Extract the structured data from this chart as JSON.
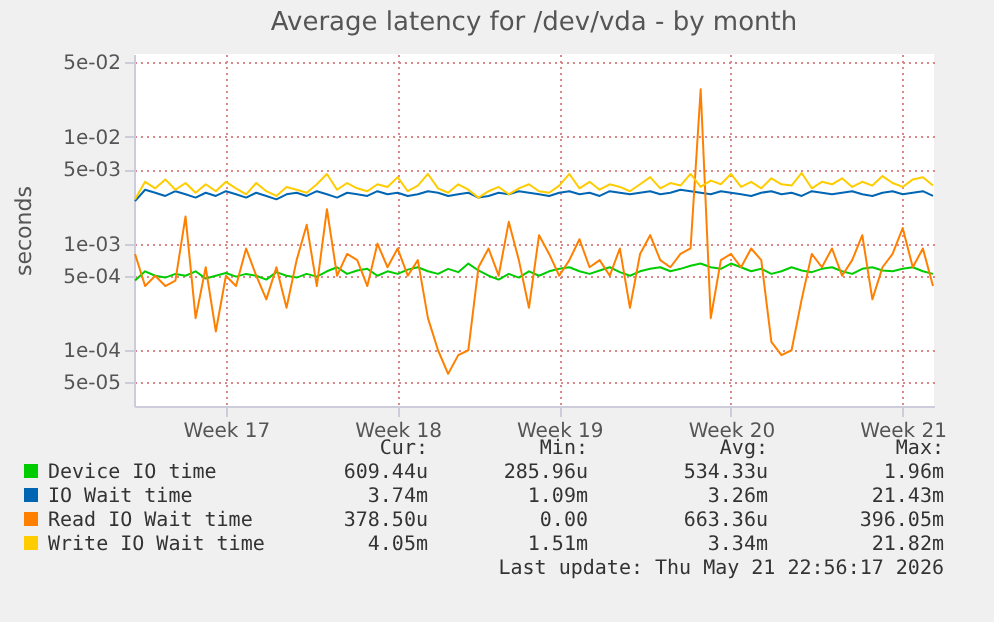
{
  "chart_data": {
    "type": "line",
    "title": "Average latency for /dev/vda - by month",
    "ylabel": "seconds",
    "log": "y",
    "grid": true,
    "legend": "bottom",
    "ylim": [
      3e-05,
      0.06
    ],
    "yticks": [
      {
        "value": 5e-05,
        "label": "5e-05"
      },
      {
        "value": 0.0001,
        "label": "1e-04"
      },
      {
        "value": 0.0005,
        "label": "5e-04"
      },
      {
        "value": 0.001,
        "label": "1e-03"
      },
      {
        "value": 0.005,
        "label": "5e-03"
      },
      {
        "value": 0.01,
        "label": "1e-02"
      },
      {
        "value": 0.05,
        "label": "5e-02"
      }
    ],
    "categories": [
      null,
      null,
      null,
      null,
      null,
      null,
      null,
      null,
      null,
      "Week 17",
      null,
      null,
      null,
      null,
      null,
      null,
      null,
      null,
      null,
      null,
      null,
      null,
      null,
      null,
      null,
      null,
      "Week 18",
      null,
      null,
      null,
      null,
      null,
      null,
      null,
      null,
      null,
      null,
      null,
      null,
      null,
      null,
      null,
      "Week 19",
      null,
      null,
      null,
      null,
      null,
      null,
      null,
      null,
      null,
      null,
      null,
      null,
      null,
      null,
      null,
      null,
      "Week 20",
      null,
      null,
      null,
      null,
      null,
      null,
      null,
      null,
      null,
      null,
      null,
      null,
      null,
      null,
      null,
      null,
      "Week 21",
      null,
      null,
      null
    ],
    "series": [
      {
        "name": "Device IO time",
        "color": "#00cc00",
        "values": [
          0.00045,
          0.00055,
          0.0005,
          0.00048,
          0.00052,
          0.0005,
          0.00055,
          0.00047,
          0.0005,
          0.00053,
          0.00049,
          0.00052,
          0.0005,
          0.00046,
          0.00054,
          0.0005,
          0.00048,
          0.00052,
          0.00049,
          0.00055,
          0.0006,
          0.00052,
          0.00056,
          0.00058,
          0.0005,
          0.00055,
          0.00052,
          0.00057,
          0.0006,
          0.00055,
          0.00052,
          0.00058,
          0.00054,
          0.00065,
          0.00056,
          0.0005,
          0.00046,
          0.00052,
          0.00048,
          0.00055,
          0.0005,
          0.00055,
          0.00058,
          0.0006,
          0.00055,
          0.00052,
          0.00056,
          0.0006,
          0.00054,
          0.0005,
          0.00055,
          0.00058,
          0.0006,
          0.00055,
          0.00058,
          0.00062,
          0.00065,
          0.0006,
          0.00058,
          0.00065,
          0.0006,
          0.00055,
          0.00058,
          0.00052,
          0.00055,
          0.0006,
          0.00056,
          0.00054,
          0.00058,
          0.0006,
          0.00055,
          0.00052,
          0.00058,
          0.0006,
          0.00056,
          0.00055,
          0.00058,
          0.0006,
          0.00055,
          0.00052
        ]
      },
      {
        "name": "IO Wait time",
        "color": "#0066b3",
        "values": [
          0.0025,
          0.0032,
          0.003,
          0.0028,
          0.0031,
          0.0029,
          0.0027,
          0.003,
          0.0028,
          0.0031,
          0.0029,
          0.0027,
          0.003,
          0.0028,
          0.0026,
          0.0029,
          0.003,
          0.0028,
          0.0031,
          0.0029,
          0.0027,
          0.003,
          0.0029,
          0.0028,
          0.0031,
          0.0029,
          0.003,
          0.0028,
          0.0029,
          0.0031,
          0.003,
          0.0028,
          0.0029,
          0.003,
          0.0027,
          0.0028,
          0.003,
          0.0029,
          0.0031,
          0.003,
          0.0029,
          0.0028,
          0.003,
          0.0031,
          0.0029,
          0.003,
          0.0028,
          0.0031,
          0.003,
          0.0029,
          0.003,
          0.0031,
          0.0029,
          0.003,
          0.0032,
          0.0031,
          0.003,
          0.0029,
          0.0031,
          0.003,
          0.0029,
          0.0028,
          0.003,
          0.0031,
          0.0029,
          0.003,
          0.0028,
          0.0031,
          0.003,
          0.0029,
          0.003,
          0.0031,
          0.0029,
          0.0028,
          0.003,
          0.0031,
          0.0029,
          0.003,
          0.0031,
          0.0028
        ]
      },
      {
        "name": "Read IO Wait time",
        "color": "#ff8000",
        "values": [
          0.0008,
          0.0004,
          0.0005,
          0.0004,
          0.00045,
          0.0018,
          0.0002,
          0.0006,
          0.00015,
          0.0005,
          0.0004,
          0.0009,
          0.0005,
          0.0003,
          0.0006,
          0.00025,
          0.0007,
          0.0015,
          0.0004,
          0.0021,
          0.0005,
          0.0008,
          0.0007,
          0.0004,
          0.001,
          0.0006,
          0.0009,
          0.0005,
          0.0007,
          0.0002,
          0.0001,
          6e-05,
          9e-05,
          0.0001,
          0.0006,
          0.0009,
          0.0005,
          0.0016,
          0.0007,
          0.00025,
          0.0012,
          0.0008,
          0.0005,
          0.0007,
          0.0011,
          0.0006,
          0.0007,
          0.0005,
          0.0009,
          0.00025,
          0.0008,
          0.0012,
          0.0007,
          0.0006,
          0.0008,
          0.0009,
          0.028,
          0.0002,
          0.0007,
          0.0008,
          0.0006,
          0.0009,
          0.0007,
          0.00012,
          9e-05,
          0.0001,
          0.0003,
          0.0008,
          0.0006,
          0.0009,
          0.0005,
          0.0007,
          0.0012,
          0.0003,
          0.0006,
          0.0008,
          0.0014,
          0.0006,
          0.0009,
          0.0004
        ]
      },
      {
        "name": "Write IO Wait time",
        "color": "#ffcc00",
        "values": [
          0.0026,
          0.0038,
          0.0033,
          0.004,
          0.0032,
          0.0037,
          0.003,
          0.0036,
          0.0031,
          0.0038,
          0.0033,
          0.0029,
          0.0037,
          0.0031,
          0.0028,
          0.0034,
          0.0032,
          0.003,
          0.0036,
          0.0045,
          0.0032,
          0.0037,
          0.0033,
          0.0031,
          0.0036,
          0.0034,
          0.0042,
          0.0031,
          0.0035,
          0.0045,
          0.0033,
          0.003,
          0.0036,
          0.0032,
          0.0027,
          0.0031,
          0.0034,
          0.0029,
          0.0033,
          0.0036,
          0.0031,
          0.003,
          0.0035,
          0.0045,
          0.0033,
          0.0038,
          0.0032,
          0.0036,
          0.0034,
          0.0031,
          0.0036,
          0.0042,
          0.0033,
          0.0037,
          0.0035,
          0.0045,
          0.0034,
          0.0039,
          0.0036,
          0.0045,
          0.0034,
          0.0038,
          0.0033,
          0.0041,
          0.0036,
          0.0035,
          0.0046,
          0.0033,
          0.0038,
          0.0036,
          0.0041,
          0.0034,
          0.0038,
          0.0035,
          0.0043,
          0.0037,
          0.0034,
          0.004,
          0.0042,
          0.0035
        ]
      }
    ],
    "annotations": [
      "Cur:",
      "Min:",
      "Avg:",
      "Max:",
      "609.44u",
      "285.96u",
      "534.33u",
      "1.96m",
      "3.74m",
      "1.09m",
      "3.26m",
      "21.43m",
      "378.50u",
      "0.00",
      "663.36u",
      "396.05m",
      "4.05m",
      "1.51m",
      "3.34m",
      "21.82m",
      "Last update: Thu May 21 22:56:17 2026"
    ]
  }
}
